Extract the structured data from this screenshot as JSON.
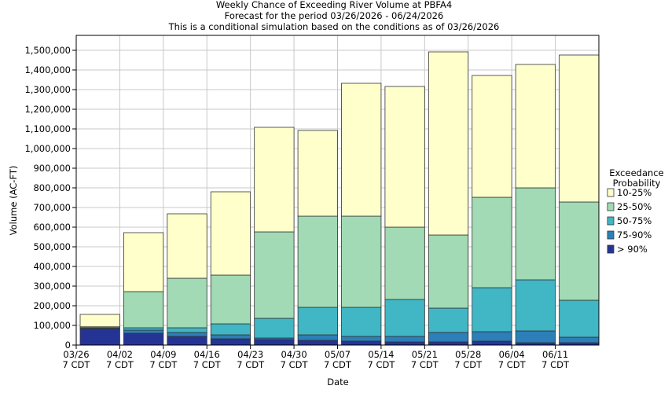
{
  "chart_data": {
    "type": "stacked_bar",
    "title": "Weekly Chance of Exceeding River Volume at PBFA4",
    "subtitle": "Forecast for the period 03/26/2026 - 06/24/2026",
    "note": "This is a conditional simulation based on the conditions as of 03/26/2026",
    "x_label": "Date",
    "y_label": "Volume (AC-FT)",
    "legend_title": "Exceedance\nProbability",
    "legend_position": "right",
    "categories": [
      "03/26\n7 CDT",
      "04/02\n7 CDT",
      "04/09\n7 CDT",
      "04/16\n7 CDT",
      "04/23\n7 CDT",
      "04/30\n7 CDT",
      "05/07\n7 CDT",
      "05/14\n7 CDT",
      "05/21\n7 CDT",
      "05/28\n7 CDT",
      "06/04\n7 CDT",
      "06/11\n7 CDT"
    ],
    "series": [
      {
        "name": "> 90%",
        "color": "#253494",
        "values": [
          80000,
          60000,
          44000,
          32000,
          28000,
          24000,
          20000,
          16000,
          16000,
          20000,
          12000,
          12000
        ]
      },
      {
        "name": "75-90%",
        "color": "#2c7fb8",
        "values": [
          5000,
          16000,
          20000,
          20000,
          8000,
          28000,
          24000,
          28000,
          48000,
          48000,
          60000,
          28000
        ]
      },
      {
        "name": "50-75%",
        "color": "#41b6c4",
        "values": [
          3000,
          12000,
          24000,
          56000,
          100000,
          140000,
          148000,
          188000,
          124000,
          224000,
          260000,
          188000
        ]
      },
      {
        "name": "25-50%",
        "color": "#a1dab4",
        "values": [
          5000,
          184000,
          252000,
          248000,
          440000,
          464000,
          464000,
          368000,
          372000,
          460000,
          468000,
          500000
        ]
      },
      {
        "name": "10-25%",
        "color": "#ffffcc",
        "values": [
          63000,
          300000,
          328000,
          424000,
          532000,
          436000,
          676000,
          716000,
          932000,
          620000,
          628000,
          748000
        ]
      }
    ],
    "ylim": [
      0,
      1576000
    ],
    "yticks": [
      0,
      {
        "value": 100000,
        "label": "100,000"
      },
      {
        "value": 200000,
        "label": "200,000"
      },
      {
        "value": 300000,
        "label": "300,000"
      },
      {
        "value": 400000,
        "label": "400,000"
      },
      {
        "value": 500000,
        "label": "500,000"
      },
      {
        "value": 600000,
        "label": "600,000"
      },
      {
        "value": 700000,
        "label": "700,000"
      },
      {
        "value": 800000,
        "label": "800,000"
      },
      {
        "value": 900000,
        "label": "900,000"
      },
      {
        "value": 1000000,
        "label": "1,000,000"
      },
      {
        "value": 1100000,
        "label": "1,100,000"
      },
      {
        "value": 1200000,
        "label": "1,200,000"
      },
      {
        "value": 1300000,
        "label": "1,300,000"
      },
      {
        "value": 1400000,
        "label": "1,400,000"
      },
      {
        "value": 1500000,
        "label": "1,500,000"
      }
    ],
    "grid": true
  }
}
